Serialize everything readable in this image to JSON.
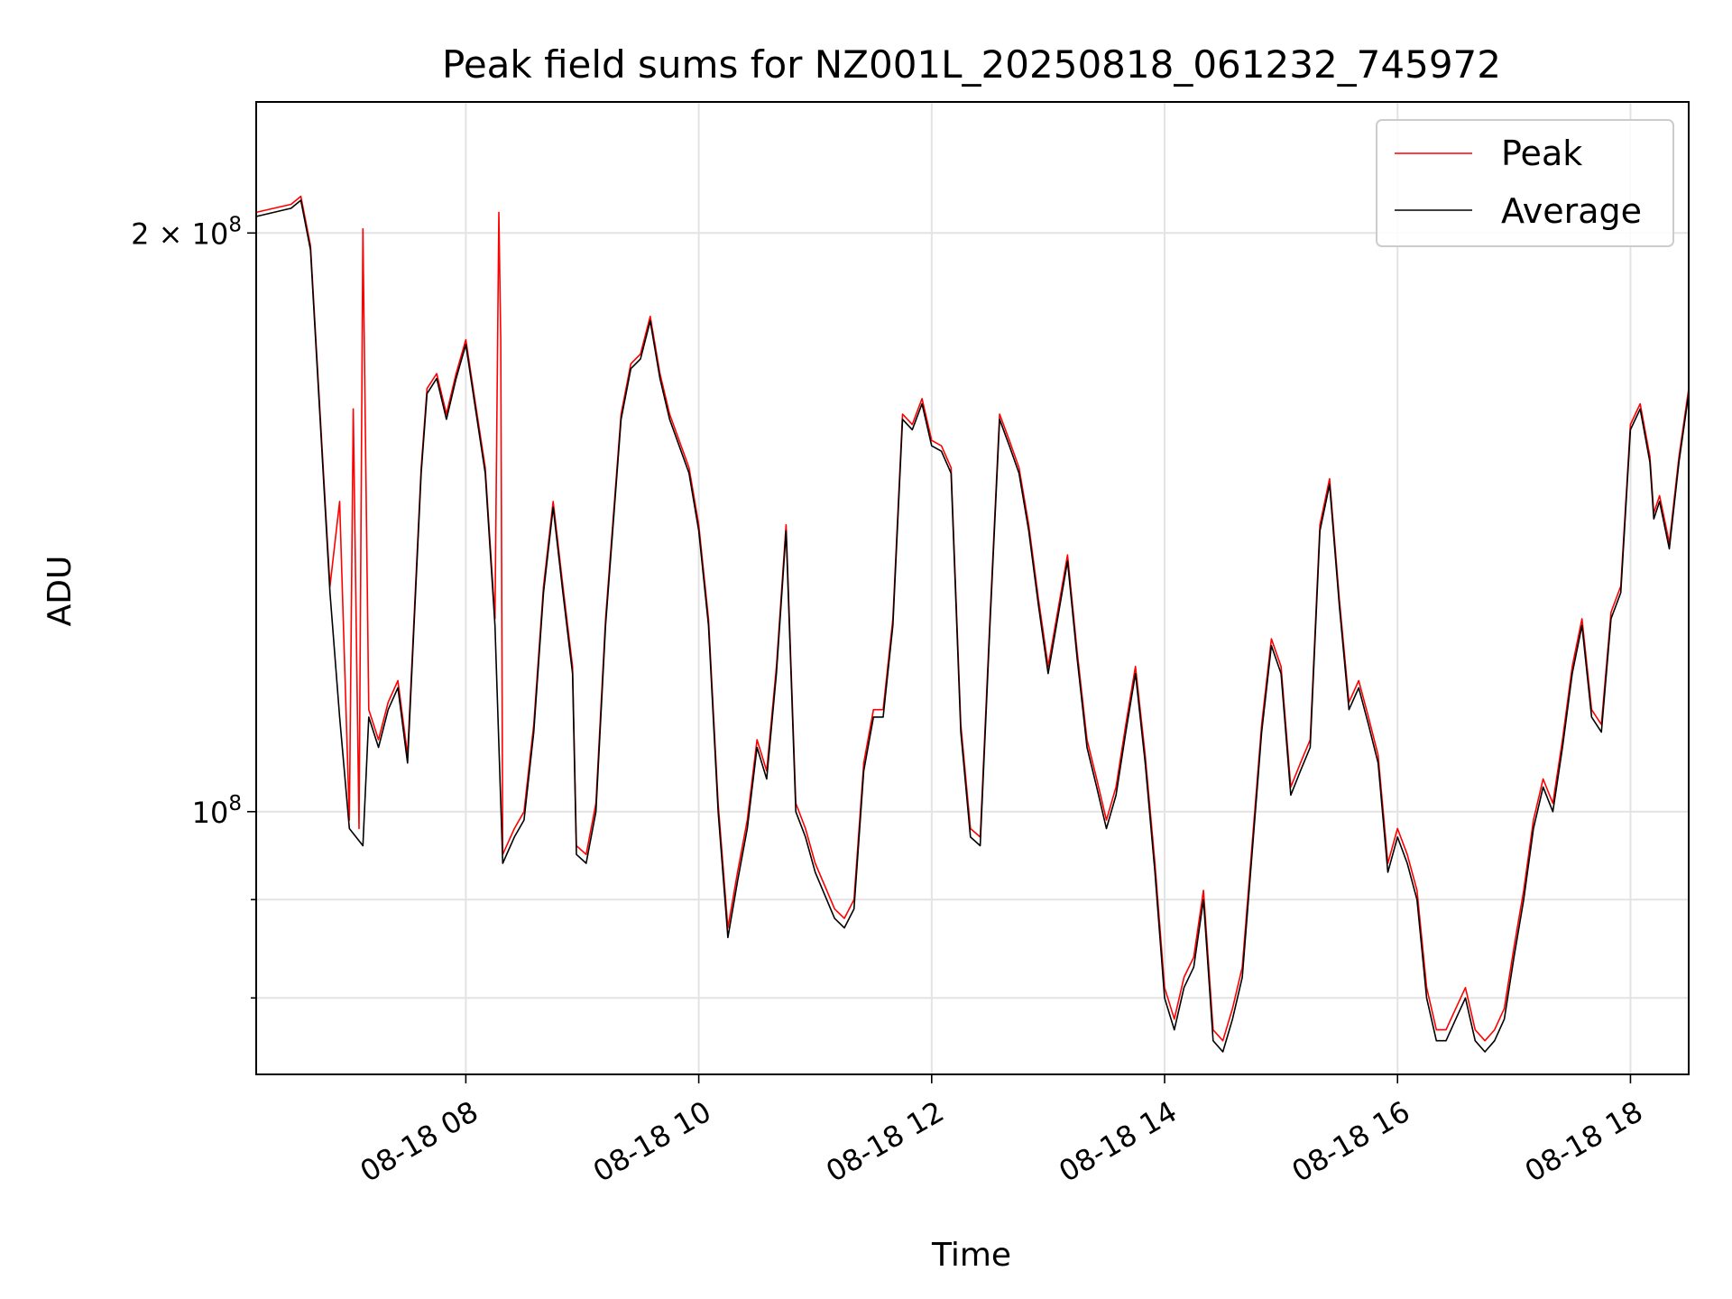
{
  "chart_data": {
    "type": "line",
    "title": "Peak field sums for NZ001L_20250818_061232_745972",
    "xlabel": "Time",
    "ylabel": "ADU",
    "y_scale": "log",
    "ylim": [
      73000000,
      234000000
    ],
    "xlim": [
      "08-18 06:12",
      "08-18 18:30"
    ],
    "x_ticks": [
      "08-18 08",
      "08-18 10",
      "08-18 12",
      "08-18 14",
      "08-18 16",
      "08-18 18"
    ],
    "y_tick_labels": [
      {
        "value": 200000000,
        "base": "2 × 10",
        "exp": "8"
      },
      {
        "value": 100000000,
        "base": "10",
        "exp": "8"
      }
    ],
    "y_minor_ticks": [
      90000000,
      80000000
    ],
    "grid": true,
    "legend_position": "upper right",
    "series": [
      {
        "name": "Average",
        "color": "#000000",
        "points": [
          [
            "06:12",
            204
          ],
          [
            "06:30",
            206
          ],
          [
            "06:35",
            208
          ],
          [
            "06:40",
            196
          ],
          [
            "06:50",
            130
          ],
          [
            "06:55",
            112
          ],
          [
            "07:00",
            98
          ],
          [
            "07:07",
            96
          ],
          [
            "07:10",
            112
          ],
          [
            "07:15",
            108
          ],
          [
            "07:20",
            113
          ],
          [
            "07:25",
            116
          ],
          [
            "07:30",
            106
          ],
          [
            "07:37",
            150
          ],
          [
            "07:40",
            165
          ],
          [
            "07:45",
            168
          ],
          [
            "07:50",
            160
          ],
          [
            "07:55",
            168
          ],
          [
            "08:00",
            175
          ],
          [
            "08:05",
            162
          ],
          [
            "08:10",
            150
          ],
          [
            "08:15",
            125
          ],
          [
            "08:19",
            94
          ],
          [
            "08:25",
            97
          ],
          [
            "08:30",
            99
          ],
          [
            "08:35",
            110
          ],
          [
            "08:40",
            130
          ],
          [
            "08:45",
            144
          ],
          [
            "08:50",
            130
          ],
          [
            "08:55",
            118
          ],
          [
            "08:57",
            95
          ],
          [
            "09:02",
            94
          ],
          [
            "09:07",
            100
          ],
          [
            "09:12",
            125
          ],
          [
            "09:20",
            160
          ],
          [
            "09:25",
            170
          ],
          [
            "09:30",
            172
          ],
          [
            "09:35",
            180
          ],
          [
            "09:40",
            168
          ],
          [
            "09:45",
            160
          ],
          [
            "09:55",
            150
          ],
          [
            "10:00",
            140
          ],
          [
            "10:05",
            125
          ],
          [
            "10:10",
            100
          ],
          [
            "10:15",
            86
          ],
          [
            "10:20",
            92
          ],
          [
            "10:25",
            98
          ],
          [
            "10:30",
            108
          ],
          [
            "10:35",
            104
          ],
          [
            "10:40",
            118
          ],
          [
            "10:45",
            140
          ],
          [
            "10:50",
            100
          ],
          [
            "10:55",
            97
          ],
          [
            "11:00",
            93
          ],
          [
            "11:10",
            88
          ],
          [
            "11:15",
            87
          ],
          [
            "11:20",
            89
          ],
          [
            "11:25",
            105
          ],
          [
            "11:30",
            112
          ],
          [
            "11:35",
            112
          ],
          [
            "11:40",
            125
          ],
          [
            "11:45",
            160
          ],
          [
            "11:50",
            158
          ],
          [
            "11:55",
            163
          ],
          [
            "12:00",
            155
          ],
          [
            "12:05",
            154
          ],
          [
            "12:10",
            150
          ],
          [
            "12:15",
            110
          ],
          [
            "12:20",
            97
          ],
          [
            "12:25",
            96
          ],
          [
            "12:30",
            125
          ],
          [
            "12:35",
            160
          ],
          [
            "12:40",
            155
          ],
          [
            "12:45",
            150
          ],
          [
            "12:50",
            140
          ],
          [
            "12:55",
            128
          ],
          [
            "13:00",
            118
          ],
          [
            "13:10",
            135
          ],
          [
            "13:15",
            120
          ],
          [
            "13:20",
            108
          ],
          [
            "13:25",
            103
          ],
          [
            "13:30",
            98
          ],
          [
            "13:35",
            102
          ],
          [
            "13:40",
            110
          ],
          [
            "13:45",
            118
          ],
          [
            "13:50",
            106
          ],
          [
            "13:55",
            93
          ],
          [
            "14:00",
            80
          ],
          [
            "14:05",
            77
          ],
          [
            "14:10",
            81
          ],
          [
            "14:15",
            83
          ],
          [
            "14:20",
            90
          ],
          [
            "14:25",
            76
          ],
          [
            "14:30",
            75
          ],
          [
            "14:35",
            78
          ],
          [
            "14:40",
            82
          ],
          [
            "14:45",
            95
          ],
          [
            "14:50",
            110
          ],
          [
            "14:55",
            122
          ],
          [
            "15:00",
            118
          ],
          [
            "15:05",
            102
          ],
          [
            "15:10",
            105
          ],
          [
            "15:15",
            108
          ],
          [
            "15:20",
            140
          ],
          [
            "15:25",
            148
          ],
          [
            "15:30",
            128
          ],
          [
            "15:35",
            113
          ],
          [
            "15:40",
            116
          ],
          [
            "15:45",
            111
          ],
          [
            "15:50",
            106
          ],
          [
            "15:55",
            93
          ],
          [
            "16:00",
            97
          ],
          [
            "16:05",
            94
          ],
          [
            "16:10",
            90
          ],
          [
            "16:15",
            80
          ],
          [
            "16:20",
            76
          ],
          [
            "16:25",
            76
          ],
          [
            "16:30",
            78
          ],
          [
            "16:35",
            80
          ],
          [
            "16:40",
            76
          ],
          [
            "16:45",
            75
          ],
          [
            "16:50",
            76
          ],
          [
            "16:55",
            78
          ],
          [
            "17:00",
            84
          ],
          [
            "17:05",
            90
          ],
          [
            "17:10",
            98
          ],
          [
            "17:15",
            103
          ],
          [
            "17:20",
            100
          ],
          [
            "17:25",
            108
          ],
          [
            "17:30",
            118
          ],
          [
            "17:35",
            125
          ],
          [
            "17:40",
            112
          ],
          [
            "17:45",
            110
          ],
          [
            "17:50",
            126
          ],
          [
            "17:55",
            130
          ],
          [
            "18:00",
            158
          ],
          [
            "18:05",
            162
          ],
          [
            "18:10",
            152
          ],
          [
            "18:12",
            142
          ],
          [
            "18:15",
            145
          ],
          [
            "18:20",
            137
          ],
          [
            "18:25",
            152
          ],
          [
            "18:30",
            165
          ]
        ]
      },
      {
        "name": "Peak",
        "color": "#ff0000",
        "points": [
          [
            "06:12",
            205
          ],
          [
            "06:30",
            207
          ],
          [
            "06:35",
            209
          ],
          [
            "06:40",
            197
          ],
          [
            "06:50",
            131
          ],
          [
            "06:55",
            145
          ],
          [
            "07:00",
            99
          ],
          [
            "07:02",
            162
          ],
          [
            "07:05",
            98
          ],
          [
            "07:07",
            201
          ],
          [
            "07:10",
            113
          ],
          [
            "07:15",
            109
          ],
          [
            "07:20",
            114
          ],
          [
            "07:25",
            117
          ],
          [
            "07:30",
            107
          ],
          [
            "07:37",
            151
          ],
          [
            "07:40",
            166
          ],
          [
            "07:45",
            169
          ],
          [
            "07:50",
            161
          ],
          [
            "07:55",
            169
          ],
          [
            "08:00",
            176
          ],
          [
            "08:05",
            163
          ],
          [
            "08:10",
            151
          ],
          [
            "08:15",
            126
          ],
          [
            "08:17",
            205
          ],
          [
            "08:18",
            176
          ],
          [
            "08:19",
            95
          ],
          [
            "08:25",
            98
          ],
          [
            "08:30",
            100
          ],
          [
            "08:35",
            111
          ],
          [
            "08:40",
            131
          ],
          [
            "08:45",
            145
          ],
          [
            "08:50",
            131
          ],
          [
            "08:55",
            119
          ],
          [
            "08:57",
            96
          ],
          [
            "09:02",
            95
          ],
          [
            "09:07",
            101
          ],
          [
            "09:12",
            126
          ],
          [
            "09:20",
            161
          ],
          [
            "09:25",
            171
          ],
          [
            "09:30",
            173
          ],
          [
            "09:35",
            181
          ],
          [
            "09:40",
            169
          ],
          [
            "09:45",
            161
          ],
          [
            "09:55",
            151
          ],
          [
            "10:00",
            141
          ],
          [
            "10:05",
            126
          ],
          [
            "10:10",
            101
          ],
          [
            "10:15",
            87
          ],
          [
            "10:20",
            93
          ],
          [
            "10:25",
            99
          ],
          [
            "10:30",
            109
          ],
          [
            "10:35",
            105
          ],
          [
            "10:40",
            119
          ],
          [
            "10:45",
            141
          ],
          [
            "10:50",
            101
          ],
          [
            "10:55",
            98
          ],
          [
            "11:00",
            94
          ],
          [
            "11:10",
            89
          ],
          [
            "11:15",
            88
          ],
          [
            "11:20",
            90
          ],
          [
            "11:25",
            106
          ],
          [
            "11:30",
            113
          ],
          [
            "11:35",
            113
          ],
          [
            "11:40",
            126
          ],
          [
            "11:45",
            161
          ],
          [
            "11:50",
            159
          ],
          [
            "11:55",
            164
          ],
          [
            "12:00",
            156
          ],
          [
            "12:05",
            155
          ],
          [
            "12:10",
            151
          ],
          [
            "12:15",
            111
          ],
          [
            "12:20",
            98
          ],
          [
            "12:25",
            97
          ],
          [
            "12:30",
            126
          ],
          [
            "12:35",
            161
          ],
          [
            "12:40",
            156
          ],
          [
            "12:45",
            151
          ],
          [
            "12:50",
            141
          ],
          [
            "12:55",
            129
          ],
          [
            "13:00",
            119
          ],
          [
            "13:10",
            136
          ],
          [
            "13:15",
            121
          ],
          [
            "13:20",
            109
          ],
          [
            "13:25",
            104
          ],
          [
            "13:30",
            99
          ],
          [
            "13:35",
            103
          ],
          [
            "13:40",
            111
          ],
          [
            "13:45",
            119
          ],
          [
            "13:50",
            107
          ],
          [
            "13:55",
            94
          ],
          [
            "14:00",
            81
          ],
          [
            "14:05",
            78
          ],
          [
            "14:10",
            82
          ],
          [
            "14:15",
            84
          ],
          [
            "14:20",
            91
          ],
          [
            "14:25",
            77
          ],
          [
            "14:30",
            76
          ],
          [
            "14:35",
            79
          ],
          [
            "14:40",
            83
          ],
          [
            "14:45",
            96
          ],
          [
            "14:50",
            111
          ],
          [
            "14:55",
            123
          ],
          [
            "15:00",
            119
          ],
          [
            "15:05",
            103
          ],
          [
            "15:10",
            106
          ],
          [
            "15:15",
            109
          ],
          [
            "15:20",
            141
          ],
          [
            "15:25",
            149
          ],
          [
            "15:30",
            129
          ],
          [
            "15:35",
            114
          ],
          [
            "15:40",
            117
          ],
          [
            "15:45",
            112
          ],
          [
            "15:50",
            107
          ],
          [
            "15:55",
            94
          ],
          [
            "16:00",
            98
          ],
          [
            "16:05",
            95
          ],
          [
            "16:10",
            91
          ],
          [
            "16:15",
            81
          ],
          [
            "16:20",
            77
          ],
          [
            "16:25",
            77
          ],
          [
            "16:30",
            79
          ],
          [
            "16:35",
            81
          ],
          [
            "16:40",
            77
          ],
          [
            "16:45",
            76
          ],
          [
            "16:50",
            77
          ],
          [
            "16:55",
            79
          ],
          [
            "17:00",
            85
          ],
          [
            "17:05",
            91
          ],
          [
            "17:10",
            99
          ],
          [
            "17:15",
            104
          ],
          [
            "17:20",
            101
          ],
          [
            "17:25",
            109
          ],
          [
            "17:30",
            119
          ],
          [
            "17:35",
            126
          ],
          [
            "17:40",
            113
          ],
          [
            "17:45",
            111
          ],
          [
            "17:50",
            127
          ],
          [
            "17:55",
            131
          ],
          [
            "18:00",
            159
          ],
          [
            "18:05",
            163
          ],
          [
            "18:10",
            153
          ],
          [
            "18:12",
            143
          ],
          [
            "18:15",
            146
          ],
          [
            "18:20",
            138
          ],
          [
            "18:25",
            153
          ],
          [
            "18:30",
            166
          ]
        ]
      }
    ]
  }
}
